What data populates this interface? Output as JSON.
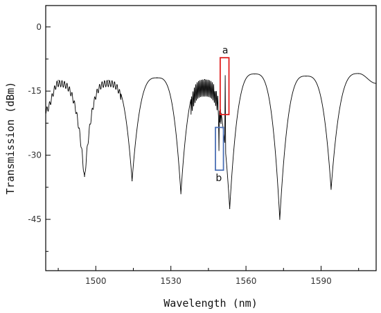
{
  "chart_data": {
    "type": "line",
    "xlabel": "Wavelength (nm)",
    "ylabel": "Transmission (dBm)",
    "xlim": [
      1480,
      1612
    ],
    "ylim": [
      -57,
      5
    ],
    "x_ticks": [
      1500,
      1530,
      1560,
      1590
    ],
    "y_ticks": [
      0,
      -15,
      -30,
      -45
    ],
    "grid": false,
    "line_color": "#000000",
    "envelope_peaks": [
      {
        "x": 1485,
        "y": -12.5
      },
      {
        "x": 1505,
        "y": -12.5
      },
      {
        "x": 1524.5,
        "y": -11.9
      },
      {
        "x": 1543.5,
        "y": -12.3
      },
      {
        "x": 1563.5,
        "y": -11.0
      },
      {
        "x": 1584,
        "y": -11.5
      },
      {
        "x": 1605,
        "y": -10.9
      }
    ],
    "envelope_dips": [
      {
        "x": 1495.5,
        "y": -35.0
      },
      {
        "x": 1514.5,
        "y": -36.0
      },
      {
        "x": 1534,
        "y": -39.0
      },
      {
        "x": 1553.5,
        "y": -42.5
      },
      {
        "x": 1573.5,
        "y": -45.0
      },
      {
        "x": 1594,
        "y": -38.0
      }
    ],
    "ripple_regions": [
      {
        "x_start": 1480,
        "x_end": 1510,
        "amplitude_db": 1.5,
        "period_nm": 1.0
      },
      {
        "x_start": 1538,
        "x_end": 1550,
        "amplitude_db": 4.0,
        "period_nm": 0.55
      }
    ],
    "sharp_features": [
      {
        "x": 1549.2,
        "y": -29.0
      },
      {
        "x": 1551.7,
        "y": -11.3
      }
    ],
    "annotations": [
      {
        "label": "a",
        "color": "#e02020",
        "x_range": [
          1549.7,
          1553.2
        ],
        "y_range": [
          -20.5,
          -7.2
        ]
      },
      {
        "label": "b",
        "color": "#4a6fb5",
        "x_range": [
          1547.8,
          1551.0
        ],
        "y_range": [
          -33.5,
          -23.5
        ]
      }
    ]
  }
}
